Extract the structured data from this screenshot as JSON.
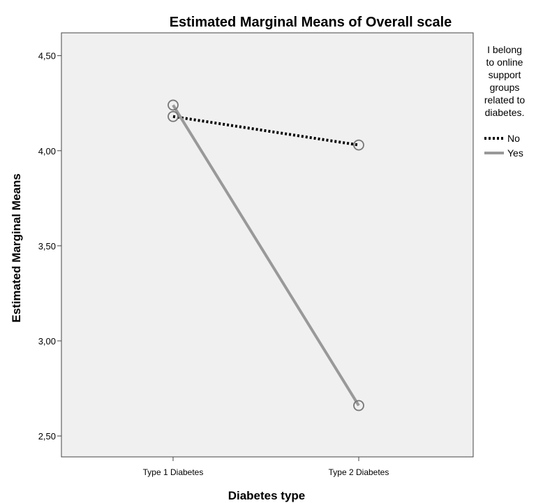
{
  "chart_data": {
    "type": "line",
    "title": "Estimated Marginal Means of Overall scale",
    "xlabel": "Diabetes type",
    "ylabel": "Estimated Marginal Means",
    "categories": [
      "Type 1 Diabetes",
      "Type 2 Diabetes"
    ],
    "yticks": [
      "2,50",
      "3,00",
      "3,50",
      "4,00",
      "4,50"
    ],
    "ylim": [
      2.39,
      4.62
    ],
    "grid": false,
    "legend": {
      "title": "I belong to online support groups related to diabetes.",
      "placement": "right",
      "entries": [
        "No",
        "Yes"
      ]
    },
    "series": [
      {
        "name": "No",
        "values": [
          4.18,
          4.03
        ],
        "style": "dotted",
        "color": "#000000"
      },
      {
        "name": "Yes",
        "values": [
          4.24,
          2.66
        ],
        "style": "solid",
        "color": "#999999"
      }
    ],
    "plot_background": "#f0f0f0"
  }
}
